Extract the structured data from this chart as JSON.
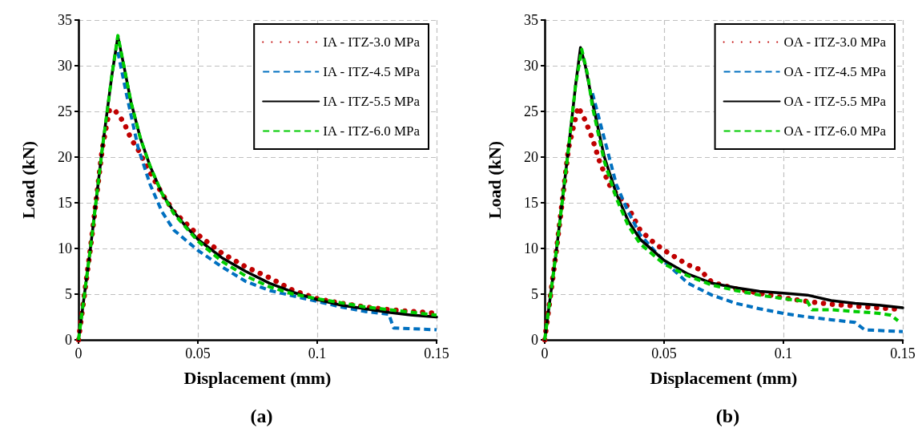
{
  "chart_data": [
    {
      "type": "line",
      "title": "(a)",
      "xlabel": "Displacement (mm)",
      "ylabel": "Load (kN)",
      "xlim": [
        0,
        0.15
      ],
      "xticks": [
        0,
        0.05,
        0.1,
        0.15
      ],
      "ylim": [
        0,
        35
      ],
      "yticks": [
        0,
        5,
        10,
        15,
        20,
        25,
        30,
        35
      ],
      "grid": true,
      "legend": "top right",
      "marker": "none",
      "series": [
        {
          "name": "IA - ITZ-3.0 MPa",
          "color": "#c00000",
          "line_style": "dotted",
          "x": [
            0,
            0.005,
            0.01,
            0.013,
            0.015,
            0.019,
            0.022,
            0.025,
            0.03,
            0.035,
            0.04,
            0.05,
            0.06,
            0.07,
            0.08,
            0.09,
            0.1,
            0.11,
            0.12,
            0.13,
            0.14,
            0.15
          ],
          "values": [
            0,
            10,
            21,
            25.2,
            25.2,
            23.8,
            22,
            20.8,
            18.3,
            16,
            14,
            11.5,
            9.5,
            8,
            6.8,
            5.4,
            4.5,
            4,
            3.6,
            3.3,
            3.1,
            2.9
          ]
        },
        {
          "name": "IA - ITZ-4.5 MPa",
          "color": "#0070c0",
          "line_style": "dashed",
          "x": [
            0.0165,
            0.02,
            0.025,
            0.03,
            0.035,
            0.04,
            0.05,
            0.06,
            0.07,
            0.08,
            0.09,
            0.1,
            0.11,
            0.12,
            0.13,
            0.132,
            0.15
          ],
          "values": [
            31.5,
            27,
            21,
            17,
            14,
            12,
            9.8,
            8,
            6.4,
            5.4,
            4.8,
            4.2,
            3.6,
            3.1,
            2.8,
            1.3,
            1.1
          ]
        },
        {
          "name": "IA - ITZ-5.5 MPa",
          "color": "#000000",
          "line_style": "solid",
          "x": [
            0,
            0.005,
            0.01,
            0.014,
            0.0165,
            0.019,
            0.022,
            0.026,
            0.03,
            0.035,
            0.04,
            0.045,
            0.05,
            0.06,
            0.07,
            0.08,
            0.09,
            0.1,
            0.11,
            0.12,
            0.13,
            0.14,
            0.15
          ],
          "values": [
            0,
            10,
            21,
            29,
            33.2,
            30,
            26,
            22,
            19,
            16,
            14,
            12.4,
            11,
            9,
            7.5,
            6.2,
            5.2,
            4.4,
            3.8,
            3.4,
            3,
            2.7,
            2.5
          ]
        },
        {
          "name": "IA - ITZ-6.0 MPa",
          "color": "#00cc00",
          "line_style": "dashed",
          "x": [
            0,
            0.005,
            0.01,
            0.014,
            0.0165,
            0.019,
            0.022,
            0.026,
            0.03,
            0.035,
            0.04,
            0.05,
            0.06,
            0.07,
            0.08,
            0.09,
            0.1,
            0.12,
            0.15
          ],
          "values": [
            0,
            10,
            21,
            29,
            33.3,
            30,
            26,
            22,
            19,
            16,
            13.8,
            10.8,
            8.6,
            7,
            5.8,
            5,
            4.5,
            3.6,
            2.7
          ]
        }
      ]
    },
    {
      "type": "line",
      "title": "(b)",
      "xlabel": "Displacement (mm)",
      "ylabel": "Load (kN)",
      "xlim": [
        0,
        0.15
      ],
      "xticks": [
        0,
        0.05,
        0.1,
        0.15
      ],
      "ylim": [
        0,
        35
      ],
      "yticks": [
        0,
        5,
        10,
        15,
        20,
        25,
        30,
        35
      ],
      "grid": true,
      "legend": "top right",
      "marker": "none",
      "series": [
        {
          "name": "OA - ITZ-3.0 MPa",
          "color": "#c00000",
          "line_style": "dotted",
          "x": [
            0,
            0.005,
            0.01,
            0.014,
            0.017,
            0.02,
            0.023,
            0.027,
            0.03,
            0.035,
            0.04,
            0.045,
            0.05,
            0.055,
            0.06,
            0.065,
            0.07,
            0.08,
            0.09,
            0.1,
            0.11,
            0.12,
            0.13,
            0.14,
            0.15
          ],
          "values": [
            0,
            10,
            21,
            25.5,
            24,
            22,
            19.5,
            17,
            16,
            14.5,
            12,
            10.8,
            9.8,
            9,
            8.2,
            7.7,
            6.3,
            5.6,
            5.1,
            4.6,
            4.2,
            3.9,
            3.7,
            3.5,
            3.3
          ]
        },
        {
          "name": "OA - ITZ-4.5 MPa",
          "color": "#0070c0",
          "line_style": "dashed",
          "x": [
            0.02,
            0.025,
            0.03,
            0.035,
            0.04,
            0.05,
            0.06,
            0.07,
            0.08,
            0.09,
            0.1,
            0.11,
            0.12,
            0.13,
            0.134,
            0.15
          ],
          "values": [
            27,
            22,
            17,
            14,
            11.5,
            8.6,
            6.2,
            4.9,
            4,
            3.4,
            2.9,
            2.5,
            2.2,
            1.9,
            1.1,
            0.9
          ]
        },
        {
          "name": "OA - ITZ-5.5 MPa",
          "color": "#000000",
          "line_style": "solid",
          "x": [
            0,
            0.005,
            0.01,
            0.013,
            0.015,
            0.017,
            0.02,
            0.025,
            0.03,
            0.035,
            0.04,
            0.05,
            0.06,
            0.07,
            0.08,
            0.09,
            0.1,
            0.11,
            0.12,
            0.13,
            0.14,
            0.15
          ],
          "values": [
            0,
            10,
            21,
            28,
            32,
            30,
            26,
            20,
            16,
            13,
            11,
            8.7,
            7.2,
            6.2,
            5.7,
            5.3,
            5.1,
            4.9,
            4.3,
            4,
            3.8,
            3.5
          ]
        },
        {
          "name": "OA - ITZ-6.0 MPa",
          "color": "#00cc00",
          "line_style": "dashed",
          "x": [
            0,
            0.005,
            0.01,
            0.013,
            0.0155,
            0.018,
            0.02,
            0.025,
            0.03,
            0.035,
            0.04,
            0.05,
            0.06,
            0.07,
            0.08,
            0.09,
            0.1,
            0.11,
            0.112,
            0.12,
            0.13,
            0.14,
            0.145,
            0.148
          ],
          "values": [
            0,
            10,
            21,
            28,
            31.8,
            29,
            25.5,
            19.5,
            15.5,
            12.5,
            10.5,
            8.3,
            7,
            6,
            5.4,
            4.9,
            4.5,
            4.2,
            3.3,
            3.3,
            3.1,
            2.9,
            2.7,
            2.1
          ]
        }
      ]
    }
  ]
}
